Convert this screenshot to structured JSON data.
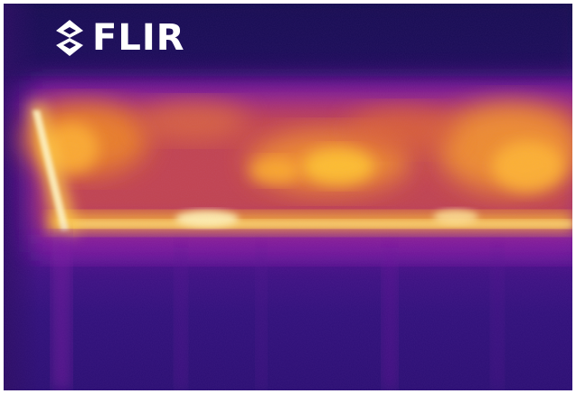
{
  "image": {
    "kind": "thermal-camera-photo",
    "palette": "iron",
    "colors": {
      "border": "#ffffff",
      "cold": "#1a0b4c",
      "cool": "#4a0f8a",
      "warm": "#9a22a8",
      "hot": "#f07a1e",
      "hotter": "#ffc62b",
      "hottest": "#fff6b0"
    }
  },
  "logo": {
    "text": "FLIR",
    "icon": "flir-diamond-logo-icon"
  }
}
